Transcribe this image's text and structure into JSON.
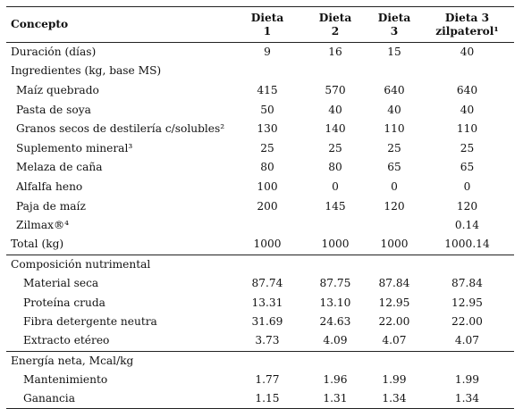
{
  "table": {
    "header": [
      {
        "line1": "Concepto",
        "line2": ""
      },
      {
        "line1": "Dieta",
        "line2": "1"
      },
      {
        "line1": "Dieta",
        "line2": "2"
      },
      {
        "line1": "Dieta",
        "line2": "3"
      },
      {
        "line1": "Dieta 3",
        "line2": "zilpaterol¹"
      }
    ],
    "rows": [
      {
        "label": "Duración (días)",
        "values": [
          "9",
          "16",
          "15",
          "40"
        ],
        "level": 0,
        "sep": false
      },
      {
        "label": "Ingredientes (kg, base MS)",
        "values": [
          "",
          "",
          "",
          ""
        ],
        "level": 0,
        "sep": false
      },
      {
        "label": "Maíz quebrado",
        "values": [
          "415",
          "570",
          "640",
          "640"
        ],
        "level": 1,
        "sep": false
      },
      {
        "label": "Pasta de soya",
        "values": [
          "50",
          "40",
          "40",
          "40"
        ],
        "level": 1,
        "sep": false
      },
      {
        "label": "Granos secos de destilería c/solubles²",
        "values": [
          "130",
          "140",
          "110",
          "110"
        ],
        "level": 1,
        "sep": false
      },
      {
        "label": "Suplemento mineral³",
        "values": [
          "25",
          "25",
          "25",
          "25"
        ],
        "level": 1,
        "sep": false
      },
      {
        "label": "Melaza de caña",
        "values": [
          "80",
          "80",
          "65",
          "65"
        ],
        "level": 1,
        "sep": false
      },
      {
        "label": "Alfalfa heno",
        "values": [
          "100",
          "0",
          "0",
          "0"
        ],
        "level": 1,
        "sep": false
      },
      {
        "label": "Paja de maíz",
        "values": [
          "200",
          "145",
          "120",
          "120"
        ],
        "level": 1,
        "sep": false
      },
      {
        "label": "Zilmax®⁴",
        "values": [
          "",
          "",
          "",
          "0.14"
        ],
        "level": 1,
        "sep": false
      },
      {
        "label": "Total (kg)",
        "values": [
          "1000",
          "1000",
          "1000",
          "1000.14"
        ],
        "level": 0,
        "sep": false
      },
      {
        "label": "Composición nutrimental",
        "values": [
          "",
          "",
          "",
          ""
        ],
        "level": 0,
        "sep": true
      },
      {
        "label": "Material seca",
        "values": [
          "87.74",
          "87.75",
          "87.84",
          "87.84"
        ],
        "level": 2,
        "sep": false
      },
      {
        "label": "Proteína cruda",
        "values": [
          "13.31",
          "13.10",
          "12.95",
          "12.95"
        ],
        "level": 2,
        "sep": false
      },
      {
        "label": "Fibra detergente neutra",
        "values": [
          "31.69",
          "24.63",
          "22.00",
          "22.00"
        ],
        "level": 2,
        "sep": false
      },
      {
        "label": "Extracto etéreo",
        "values": [
          "3.73",
          "4.09",
          "4.07",
          "4.07"
        ],
        "level": 2,
        "sep": false
      },
      {
        "label": "Energía neta, Mcal/kg",
        "values": [
          "",
          "",
          "",
          ""
        ],
        "level": 0,
        "sep": true
      },
      {
        "label": "Mantenimiento",
        "values": [
          "1.77",
          "1.96",
          "1.99",
          "1.99"
        ],
        "level": 2,
        "sep": false
      },
      {
        "label": "Ganancia",
        "values": [
          "1.15",
          "1.31",
          "1.34",
          "1.34"
        ],
        "level": 2,
        "sep": false
      }
    ]
  }
}
